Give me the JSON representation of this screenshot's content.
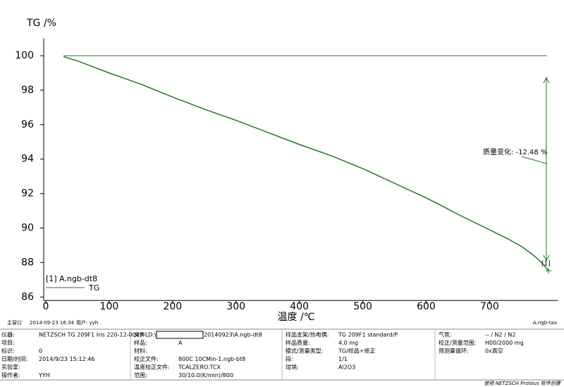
{
  "chart_data": {
    "type": "line",
    "y_label": "TG /%",
    "x_label": "温度 /℃",
    "x": [
      28,
      50,
      100,
      150,
      200,
      250,
      300,
      350,
      400,
      450,
      500,
      550,
      600,
      632,
      650,
      700,
      730,
      750,
      770,
      785,
      793
    ],
    "series": [
      {
        "name": "TG",
        "color": "#1f7a1f",
        "values": [
          99.95,
          99.7,
          99.0,
          98.35,
          97.6,
          96.9,
          96.25,
          95.55,
          94.85,
          94.2,
          93.45,
          92.6,
          91.75,
          91.15,
          90.8,
          89.9,
          89.35,
          88.95,
          88.4,
          87.9,
          87.52
        ]
      }
    ],
    "reference_y": 100,
    "xlim": [
      -5,
      808
    ],
    "ylim": [
      85.8,
      101
    ],
    "xticks": [
      0,
      100,
      200,
      300,
      400,
      500,
      600,
      700
    ],
    "yticks": [
      86,
      88,
      90,
      92,
      94,
      96,
      98,
      100
    ],
    "legend_title": "[1] A.ngb-dt8",
    "legend": "lower left",
    "end_label": "[1]",
    "annotation": "质量变化: -12.48 %"
  },
  "status_bar": {
    "window": "主窗口",
    "datetime": "2014-09-23 16:34",
    "user": "用户: yyh",
    "file_id": "A.ngb-taa"
  },
  "info_table": {
    "rows": [
      [
        {
          "label": "仪器:",
          "value": "NETZSCH TG 209F1 Iris 220-12-0049-L"
        },
        {
          "label": "文件:",
          "value": "D:\\",
          "value_after": "20140923\\A.ngb-dt8"
        },
        {
          "label": "样品支架/热电偶:",
          "value": "TG 209F1 standard/P"
        },
        {
          "label": "气氛:",
          "value": "-- / N2 / N2"
        }
      ],
      [
        {
          "label": "项目:"
        },
        {
          "label": "样品:",
          "value": "A"
        },
        {
          "label": "样品质量:",
          "value": "4.0 mg"
        },
        {
          "label": "校正/测量范围:",
          "value": "H00/2000 mg"
        }
      ],
      [
        {
          "label": "标识:",
          "value": "0"
        },
        {
          "label": "材料:"
        },
        {
          "label": "模式/测量类型:",
          "value": "TG/样品+修正"
        },
        {
          "label": "预测量循环:",
          "value": "0x真空"
        }
      ],
      [
        {
          "label": "日期/时间:",
          "value": "2014/9/23 15:12:46"
        },
        {
          "label": "校正文件:",
          "value": "800C 10CMin-1.ngb-bt8"
        },
        {
          "label": "段:",
          "value": "1/1"
        },
        null
      ],
      [
        {
          "label": "实验室:"
        },
        {
          "label": "温度校正文件:",
          "value": "TCALZERO.TCX"
        },
        {
          "label": "坩埚:",
          "value": "Al2O3"
        },
        null
      ],
      [
        {
          "label": "操作者:",
          "value": "YYH"
        },
        {
          "label": "范围:",
          "value": "30/10.0(K/min)/800"
        },
        null,
        null
      ]
    ]
  },
  "credit": "使用 NETZSCH Proteus 软件创建"
}
